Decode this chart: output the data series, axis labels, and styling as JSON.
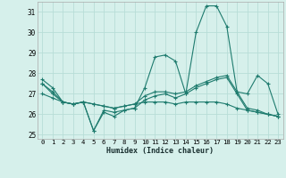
{
  "title": "",
  "xlabel": "Humidex (Indice chaleur)",
  "xlim": [
    -0.5,
    23.5
  ],
  "ylim": [
    24.8,
    31.5
  ],
  "yticks": [
    25,
    26,
    27,
    28,
    29,
    30,
    31
  ],
  "xticks": [
    0,
    1,
    2,
    3,
    4,
    5,
    6,
    7,
    8,
    9,
    10,
    11,
    12,
    13,
    14,
    15,
    16,
    17,
    18,
    19,
    20,
    21,
    22,
    23
  ],
  "bg_color": "#d6f0eb",
  "grid_color": "#b8ddd7",
  "line_color": "#1e7b6e",
  "lines": [
    [
      27.7,
      27.3,
      26.6,
      26.5,
      26.6,
      25.2,
      26.2,
      26.1,
      26.2,
      26.3,
      27.3,
      28.8,
      28.9,
      28.6,
      27.0,
      30.0,
      31.3,
      31.3,
      30.3,
      27.1,
      27.0,
      27.9,
      27.5,
      26.0
    ],
    [
      27.5,
      27.1,
      26.6,
      26.5,
      26.6,
      26.5,
      26.4,
      26.3,
      26.4,
      26.5,
      26.9,
      27.1,
      27.1,
      27.0,
      27.1,
      27.4,
      27.6,
      27.8,
      27.9,
      27.1,
      26.3,
      26.2,
      26.0,
      25.9
    ],
    [
      27.0,
      26.8,
      26.6,
      26.5,
      26.6,
      26.5,
      26.4,
      26.3,
      26.4,
      26.5,
      26.6,
      26.6,
      26.6,
      26.5,
      26.6,
      26.6,
      26.6,
      26.6,
      26.5,
      26.3,
      26.2,
      26.1,
      26.0,
      25.9
    ],
    [
      27.5,
      27.0,
      26.6,
      26.5,
      26.6,
      25.2,
      26.1,
      25.9,
      26.2,
      26.3,
      26.7,
      26.9,
      27.0,
      26.8,
      27.0,
      27.3,
      27.5,
      27.7,
      27.8,
      27.0,
      26.2,
      26.1,
      26.0,
      25.9
    ]
  ]
}
